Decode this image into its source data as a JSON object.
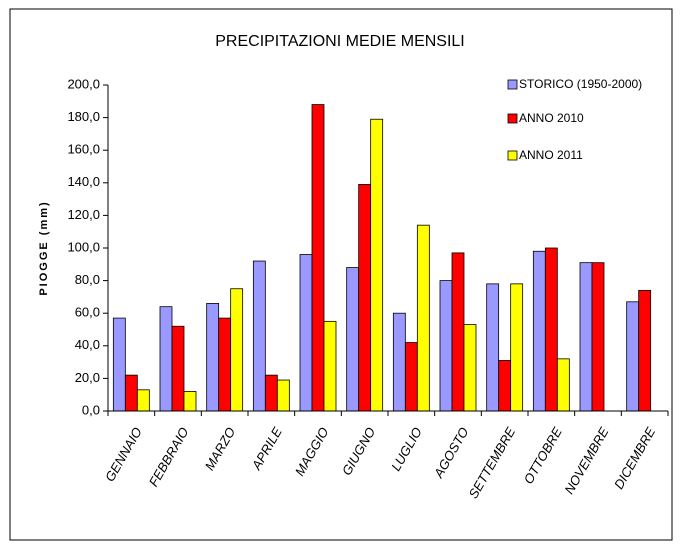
{
  "chart_data": {
    "type": "bar",
    "title": "PRECIPITAZIONI MEDIE MENSILI",
    "y_label": "PIOGGE (mm)",
    "categories": [
      "GENNAIO",
      "FEBBRAIO",
      "MARZO",
      "APRILE",
      "MAGGIO",
      "GIUGNO",
      "LUGLIO",
      "AGOSTO",
      "SETTEMBRE",
      "OTTOBRE",
      "NOVEMBRE",
      "DICEMBRE"
    ],
    "series": [
      {
        "name": "STORICO (1950-2000)",
        "color": "#9999ff",
        "values": [
          57,
          64,
          66,
          92,
          96,
          88,
          60,
          80,
          78,
          98,
          91,
          67
        ]
      },
      {
        "name": "ANNO 2010",
        "color": "#ff0000",
        "values": [
          22,
          52,
          57,
          22,
          188,
          139,
          42,
          97,
          31,
          100,
          91,
          74
        ]
      },
      {
        "name": "ANNO 2011",
        "color": "#ffff00",
        "values": [
          13,
          12,
          75,
          19,
          55,
          179,
          114,
          53,
          78,
          32,
          null,
          null
        ]
      }
    ],
    "ylim": [
      0,
      200
    ],
    "yticks": [
      {
        "value": 0,
        "label": "0,0"
      },
      {
        "value": 20,
        "label": "20,0"
      },
      {
        "value": 40,
        "label": "40,0"
      },
      {
        "value": 60,
        "label": "60,0"
      },
      {
        "value": 80,
        "label": "80,0"
      },
      {
        "value": 100,
        "label": "100,0"
      },
      {
        "value": 120,
        "label": "120,0"
      },
      {
        "value": 140,
        "label": "140,0"
      },
      {
        "value": 160,
        "label": "160,0"
      },
      {
        "value": 180,
        "label": "180,0"
      },
      {
        "value": 200,
        "label": "200,0"
      }
    ],
    "legend": "top-right"
  }
}
